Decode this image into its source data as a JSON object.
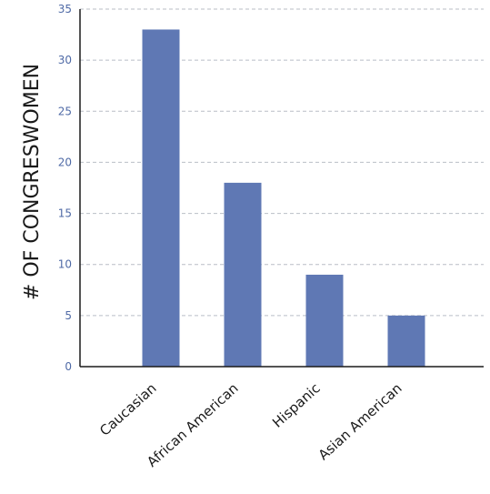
{
  "chart_data": {
    "type": "bar",
    "title": "",
    "xlabel": "",
    "ylabel": "# OF CONGRESWOMEN",
    "categories": [
      "Caucasian",
      "African American",
      "Hispanic",
      "Asian American"
    ],
    "values": [
      33,
      18,
      9,
      5
    ],
    "ylim": [
      0,
      35
    ],
    "yticks": [
      0,
      5,
      10,
      15,
      20,
      25,
      30,
      35
    ],
    "grid": true,
    "colors": {
      "bar": "#5f78b4",
      "tick_label": "#4f6aa6",
      "grid": "#b9bec6",
      "axis": "#1a1a1a"
    }
  }
}
